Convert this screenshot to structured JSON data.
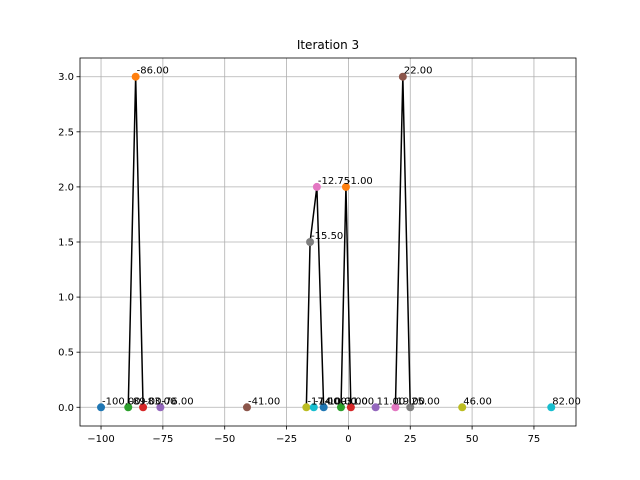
{
  "chart_data": {
    "type": "scatter",
    "title": "Iteration 3",
    "xlabel": "",
    "ylabel": "",
    "xlim": [
      -108.5,
      92
    ],
    "ylim": [
      -0.17,
      3.17
    ],
    "xticks": [
      -100,
      -75,
      -50,
      -25,
      0,
      25,
      50,
      75
    ],
    "yticks": [
      0.0,
      0.5,
      1.0,
      1.5,
      2.0,
      2.5,
      3.0
    ],
    "xtick_labels": [
      "−100",
      "−75",
      "−50",
      "−25",
      "0",
      "25",
      "50",
      "75"
    ],
    "ytick_labels": [
      "0.0",
      "0.5",
      "1.0",
      "1.5",
      "2.0",
      "2.5",
      "3.0"
    ],
    "grid": true,
    "points": [
      {
        "x": -100,
        "y": 0,
        "label": "-100.00",
        "color": "#1f77b4"
      },
      {
        "x": -89,
        "y": 0,
        "label": "-89.00",
        "color": "#2ca02c"
      },
      {
        "x": -86,
        "y": 3,
        "label": "-86.00",
        "color": "#ff7f0e"
      },
      {
        "x": -83,
        "y": 0,
        "label": "-83.00",
        "color": "#d62728"
      },
      {
        "x": -76,
        "y": 0,
        "label": "-76.00",
        "color": "#9467bd"
      },
      {
        "x": -41,
        "y": 0,
        "label": "-41.00",
        "color": "#8c564b"
      },
      {
        "x": -17,
        "y": 0,
        "label": "-17.00",
        "color": "#bcbd22"
      },
      {
        "x": -15.5,
        "y": 1.5,
        "label": "-15.50",
        "color": "#7f7f7f"
      },
      {
        "x": -14,
        "y": 0,
        "label": "-14.00",
        "color": "#17becf"
      },
      {
        "x": -12.75,
        "y": 2,
        "label": "-12.75",
        "color": "#e377c2"
      },
      {
        "x": -10,
        "y": 0,
        "label": "-10.00",
        "color": "#1f77b4"
      },
      {
        "x": -3,
        "y": 0,
        "label": "-3.00",
        "color": "#2ca02c"
      },
      {
        "x": -1,
        "y": 2,
        "label": "-1.00",
        "color": "#ff7f0e"
      },
      {
        "x": 1,
        "y": 0,
        "label": "1.00",
        "color": "#d62728"
      },
      {
        "x": 11,
        "y": 0,
        "label": "11.00",
        "color": "#9467bd"
      },
      {
        "x": 19,
        "y": 0,
        "label": "19.00",
        "color": "#e377c2"
      },
      {
        "x": 22,
        "y": 3,
        "label": "22.00",
        "color": "#8c564b"
      },
      {
        "x": 25,
        "y": 0,
        "label": "25.00",
        "color": "#7f7f7f"
      },
      {
        "x": 46,
        "y": 0,
        "label": "46.00",
        "color": "#bcbd22"
      },
      {
        "x": 82,
        "y": 0,
        "label": "82.00",
        "color": "#17becf"
      }
    ],
    "lines": [
      [
        [
          -89,
          0
        ],
        [
          -86,
          3
        ],
        [
          -83,
          0
        ]
      ],
      [
        [
          -17,
          0
        ],
        [
          -15.5,
          1.5
        ],
        [
          -12.75,
          2
        ],
        [
          -10,
          0
        ]
      ],
      [
        [
          -3,
          0
        ],
        [
          -1,
          2
        ],
        [
          1,
          0
        ]
      ],
      [
        [
          19,
          0
        ],
        [
          22,
          3
        ],
        [
          25,
          0
        ]
      ]
    ],
    "line_color": "#000000",
    "grid_color": "#b0b0b0"
  }
}
